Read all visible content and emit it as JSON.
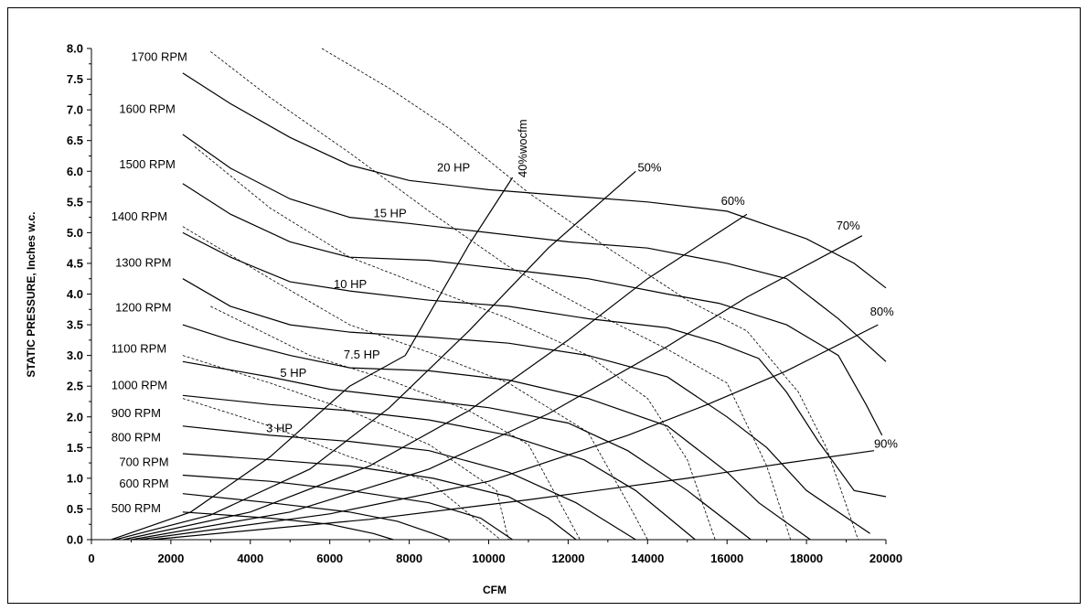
{
  "chart_data": {
    "type": "line",
    "xlabel": "CFM",
    "ylabel": "STATIC PRESSURE, Inches w.c.",
    "xlim": [
      0,
      20000
    ],
    "ylim": [
      0,
      8
    ],
    "x_ticks": [
      "0",
      "2000",
      "4000",
      "6000",
      "8000",
      "10000",
      "12000",
      "14000",
      "16000",
      "18000",
      "20000"
    ],
    "y_ticks": [
      "0.0",
      "0.5",
      "1.0",
      "1.5",
      "2.0",
      "2.5",
      "3.0",
      "3.5",
      "4.0",
      "4.5",
      "5.0",
      "5.5",
      "6.0",
      "6.5",
      "7.0",
      "7.5",
      "8.0"
    ],
    "grid": false,
    "legend": "none",
    "rpm_curves": [
      {
        "name": "500 RPM",
        "points": [
          [
            2300,
            0.45
          ],
          [
            4500,
            0.35
          ],
          [
            6000,
            0.25
          ],
          [
            7100,
            0.1
          ],
          [
            7600,
            0.0
          ]
        ]
      },
      {
        "name": "600 RPM",
        "points": [
          [
            2300,
            0.75
          ],
          [
            4500,
            0.6
          ],
          [
            6500,
            0.45
          ],
          [
            7700,
            0.3
          ],
          [
            8600,
            0.1
          ],
          [
            9000,
            0.0
          ]
        ]
      },
      {
        "name": "700 RPM",
        "points": [
          [
            2300,
            1.05
          ],
          [
            4500,
            0.95
          ],
          [
            6500,
            0.8
          ],
          [
            8500,
            0.6
          ],
          [
            9800,
            0.35
          ],
          [
            10600,
            0.0
          ]
        ]
      },
      {
        "name": "800 RPM",
        "points": [
          [
            2300,
            1.4
          ],
          [
            4500,
            1.3
          ],
          [
            6500,
            1.2
          ],
          [
            8600,
            1.0
          ],
          [
            10500,
            0.7
          ],
          [
            11500,
            0.35
          ],
          [
            12200,
            0.0
          ]
        ]
      },
      {
        "name": "900 RPM",
        "points": [
          [
            2300,
            1.85
          ],
          [
            4500,
            1.7
          ],
          [
            6500,
            1.6
          ],
          [
            8500,
            1.45
          ],
          [
            10500,
            1.1
          ],
          [
            12200,
            0.6
          ],
          [
            13700,
            0.0
          ]
        ]
      },
      {
        "name": "1000 RPM",
        "points": [
          [
            2300,
            2.35
          ],
          [
            4500,
            2.2
          ],
          [
            6500,
            2.1
          ],
          [
            8500,
            1.95
          ],
          [
            10500,
            1.7
          ],
          [
            12400,
            1.3
          ],
          [
            13700,
            0.8
          ],
          [
            15200,
            0.0
          ]
        ]
      },
      {
        "name": "1100 RPM",
        "points": [
          [
            2300,
            2.9
          ],
          [
            4500,
            2.65
          ],
          [
            6000,
            2.45
          ],
          [
            8000,
            2.3
          ],
          [
            10000,
            2.15
          ],
          [
            12000,
            1.9
          ],
          [
            13500,
            1.45
          ],
          [
            15000,
            0.8
          ],
          [
            16600,
            0.0
          ]
        ]
      },
      {
        "name": "1200 RPM",
        "points": [
          [
            2300,
            3.5
          ],
          [
            3500,
            3.25
          ],
          [
            5000,
            3.0
          ],
          [
            6500,
            2.8
          ],
          [
            8500,
            2.75
          ],
          [
            10500,
            2.6
          ],
          [
            12500,
            2.3
          ],
          [
            14500,
            1.85
          ],
          [
            16000,
            1.1
          ],
          [
            16800,
            0.6
          ],
          [
            18100,
            0.0
          ]
        ]
      },
      {
        "name": "1300 RPM",
        "points": [
          [
            2300,
            4.25
          ],
          [
            3500,
            3.8
          ],
          [
            5000,
            3.5
          ],
          [
            6500,
            3.38
          ],
          [
            8500,
            3.3
          ],
          [
            10500,
            3.2
          ],
          [
            12500,
            3.0
          ],
          [
            14500,
            2.65
          ],
          [
            16000,
            2.0
          ],
          [
            17000,
            1.5
          ],
          [
            18000,
            0.8
          ],
          [
            19600,
            0.1
          ]
        ]
      },
      {
        "name": "1400 RPM",
        "points": [
          [
            2300,
            5.0
          ],
          [
            3500,
            4.6
          ],
          [
            5000,
            4.2
          ],
          [
            6500,
            4.05
          ],
          [
            8500,
            3.9
          ],
          [
            10500,
            3.8
          ],
          [
            12500,
            3.6
          ],
          [
            14500,
            3.45
          ],
          [
            15800,
            3.2
          ],
          [
            16800,
            2.95
          ],
          [
            17500,
            2.4
          ],
          [
            18300,
            1.6
          ],
          [
            19200,
            0.8
          ],
          [
            20000,
            0.7
          ]
        ]
      },
      {
        "name": "1500 RPM",
        "points": [
          [
            2300,
            5.8
          ],
          [
            3500,
            5.3
          ],
          [
            5000,
            4.85
          ],
          [
            6500,
            4.6
          ],
          [
            8500,
            4.55
          ],
          [
            10500,
            4.4
          ],
          [
            12500,
            4.25
          ],
          [
            14500,
            4.0
          ],
          [
            15800,
            3.85
          ],
          [
            17500,
            3.5
          ],
          [
            18800,
            3.0
          ],
          [
            19500,
            2.2
          ],
          [
            19900,
            1.7
          ]
        ]
      },
      {
        "name": "1600 RPM",
        "points": [
          [
            2300,
            6.6
          ],
          [
            3500,
            6.05
          ],
          [
            5000,
            5.55
          ],
          [
            6500,
            5.25
          ],
          [
            8000,
            5.15
          ],
          [
            10000,
            5.0
          ],
          [
            12000,
            4.85
          ],
          [
            14000,
            4.75
          ],
          [
            16000,
            4.5
          ],
          [
            17500,
            4.25
          ],
          [
            18800,
            3.6
          ],
          [
            19400,
            3.25
          ],
          [
            20000,
            2.9
          ]
        ]
      },
      {
        "name": "1700 RPM",
        "points": [
          [
            2300,
            7.6
          ],
          [
            3500,
            7.1
          ],
          [
            5000,
            6.55
          ],
          [
            6500,
            6.1
          ],
          [
            8000,
            5.85
          ],
          [
            10000,
            5.7
          ],
          [
            12000,
            5.6
          ],
          [
            14000,
            5.5
          ],
          [
            16000,
            5.35
          ],
          [
            18000,
            4.9
          ],
          [
            19200,
            4.5
          ],
          [
            20000,
            4.1
          ]
        ]
      }
    ],
    "efficiency_lines": [
      {
        "name": "40%wocfm",
        "points": [
          [
            500,
            0.0
          ],
          [
            2500,
            0.45
          ],
          [
            4500,
            1.35
          ],
          [
            6500,
            2.5
          ],
          [
            7900,
            3.0
          ],
          [
            9500,
            4.8
          ],
          [
            10600,
            5.9
          ]
        ]
      },
      {
        "name": "50%",
        "points": [
          [
            600,
            0.0
          ],
          [
            3000,
            0.4
          ],
          [
            5500,
            1.15
          ],
          [
            7500,
            2.15
          ],
          [
            9500,
            3.4
          ],
          [
            11500,
            4.75
          ],
          [
            13700,
            6.0
          ]
        ]
      },
      {
        "name": "60%",
        "points": [
          [
            800,
            0.0
          ],
          [
            4000,
            0.45
          ],
          [
            7000,
            1.2
          ],
          [
            9500,
            2.1
          ],
          [
            12000,
            3.25
          ],
          [
            14000,
            4.25
          ],
          [
            16500,
            5.3
          ]
        ]
      },
      {
        "name": "70%",
        "points": [
          [
            1000,
            0.0
          ],
          [
            5000,
            0.45
          ],
          [
            8500,
            1.15
          ],
          [
            11500,
            2.05
          ],
          [
            14500,
            3.15
          ],
          [
            16500,
            3.95
          ],
          [
            19400,
            4.95
          ]
        ]
      },
      {
        "name": "80%",
        "points": [
          [
            1200,
            0.0
          ],
          [
            6000,
            0.42
          ],
          [
            10000,
            0.95
          ],
          [
            13500,
            1.7
          ],
          [
            15500,
            2.2
          ],
          [
            17500,
            2.75
          ],
          [
            19800,
            3.5
          ]
        ]
      },
      {
        "name": "90%",
        "points": [
          [
            1500,
            0.0
          ],
          [
            7000,
            0.33
          ],
          [
            11000,
            0.65
          ],
          [
            15000,
            1.0
          ],
          [
            17500,
            1.25
          ],
          [
            19700,
            1.45
          ]
        ]
      }
    ],
    "hp_lines": [
      {
        "name": "3 HP",
        "points": [
          [
            2300,
            2.3
          ],
          [
            4500,
            1.85
          ],
          [
            6500,
            1.35
          ],
          [
            8500,
            0.95
          ],
          [
            10300,
            0.0
          ]
        ]
      },
      {
        "name": "5 HP",
        "points": [
          [
            2300,
            3.0
          ],
          [
            4500,
            2.55
          ],
          [
            6500,
            2.1
          ],
          [
            8500,
            1.55
          ],
          [
            10200,
            0.8
          ],
          [
            10500,
            0.0
          ]
        ]
      },
      {
        "name": "7.5 HP",
        "points": [
          [
            3000,
            3.8
          ],
          [
            5500,
            3.0
          ],
          [
            7500,
            2.6
          ],
          [
            9500,
            2.1
          ],
          [
            11000,
            1.55
          ],
          [
            12300,
            0.0
          ]
        ]
      },
      {
        "name": "10 HP",
        "points": [
          [
            2300,
            5.1
          ],
          [
            4500,
            4.25
          ],
          [
            6500,
            3.5
          ],
          [
            8500,
            3.05
          ],
          [
            10500,
            2.55
          ],
          [
            12500,
            1.75
          ],
          [
            13500,
            0.6
          ],
          [
            14000,
            0.0
          ]
        ]
      },
      {
        "name": "15 HP",
        "points": [
          [
            2600,
            6.4
          ],
          [
            4500,
            5.4
          ],
          [
            6500,
            4.6
          ],
          [
            8500,
            4.1
          ],
          [
            10500,
            3.6
          ],
          [
            12500,
            3.0
          ],
          [
            14000,
            2.3
          ],
          [
            15000,
            1.3
          ],
          [
            15700,
            0.0
          ]
        ]
      },
      {
        "name": "20 HP",
        "points": [
          [
            3000,
            7.95
          ],
          [
            4500,
            7.2
          ],
          [
            6500,
            6.3
          ],
          [
            8500,
            5.35
          ],
          [
            10500,
            4.45
          ],
          [
            12500,
            3.75
          ],
          [
            14500,
            3.1
          ],
          [
            16000,
            2.55
          ],
          [
            17000,
            1.2
          ],
          [
            17600,
            0.0
          ]
        ]
      },
      {
        "name": "",
        "points": [
          [
            5800,
            8.0
          ],
          [
            7500,
            7.35
          ],
          [
            9000,
            6.7
          ],
          [
            11000,
            5.65
          ],
          [
            13000,
            4.75
          ],
          [
            15000,
            3.9
          ],
          [
            16500,
            3.4
          ],
          [
            17800,
            2.4
          ],
          [
            18500,
            1.5
          ],
          [
            19300,
            0.0
          ]
        ]
      }
    ],
    "rpm_labels": [
      "1700 RPM",
      "1600 RPM",
      "1500 RPM",
      "1400 RPM",
      "1300 RPM",
      "1200 RPM",
      "1100 RPM",
      "1000 RPM",
      "900 RPM",
      "800 RPM",
      "700 RPM",
      "600 RPM",
      "500 RPM"
    ],
    "hp_labels": [
      "20 HP",
      "15 HP",
      "10 HP",
      "7.5 HP",
      "5 HP",
      "3 HP"
    ],
    "eff_labels": [
      "40%wocfm",
      "50%",
      "60%",
      "70%",
      "80%",
      "90%"
    ]
  }
}
